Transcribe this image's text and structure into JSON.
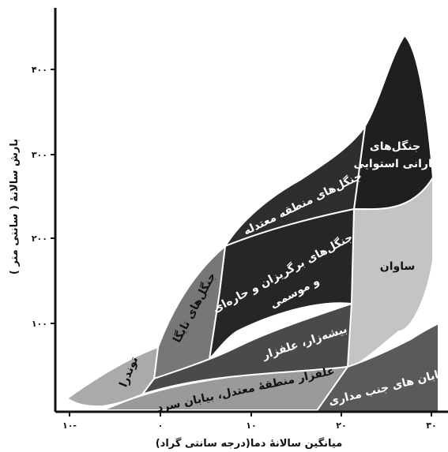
{
  "axes": {
    "x_title": "میانگین سالانهٔ دما(درجه سانتی گراد)",
    "y_title": "بارش سالانهٔ ( سانتی متر )",
    "x_ticks": [
      "۱۰-",
      "۰",
      "۱۰",
      "۲۰",
      "۳۰"
    ],
    "y_ticks": [
      "۴۰۰",
      "۳۰۰",
      "۲۰۰",
      "۱۰۰"
    ]
  },
  "biomes": {
    "tropical_rainforest_l1": "جنگل‌های",
    "tropical_rainforest_l2": "بارانی استوایی",
    "temperate_forest": "جنگل‌های منطقه معتدله",
    "deciduous_l1": "جنگل‌های برگریزان و حاره‌ای",
    "deciduous_l2": "و موسمی",
    "savanna": "ساوان",
    "taiga": "جنگل‌های تایگا",
    "shrubland": "بیشه‌زار، علفزار",
    "tundra": "توندرا",
    "temperate_grassland": "علفزار منطقهٔ معتدل، بیابان سرد",
    "subtropical_desert": "بیابان های جنب مداری"
  }
}
